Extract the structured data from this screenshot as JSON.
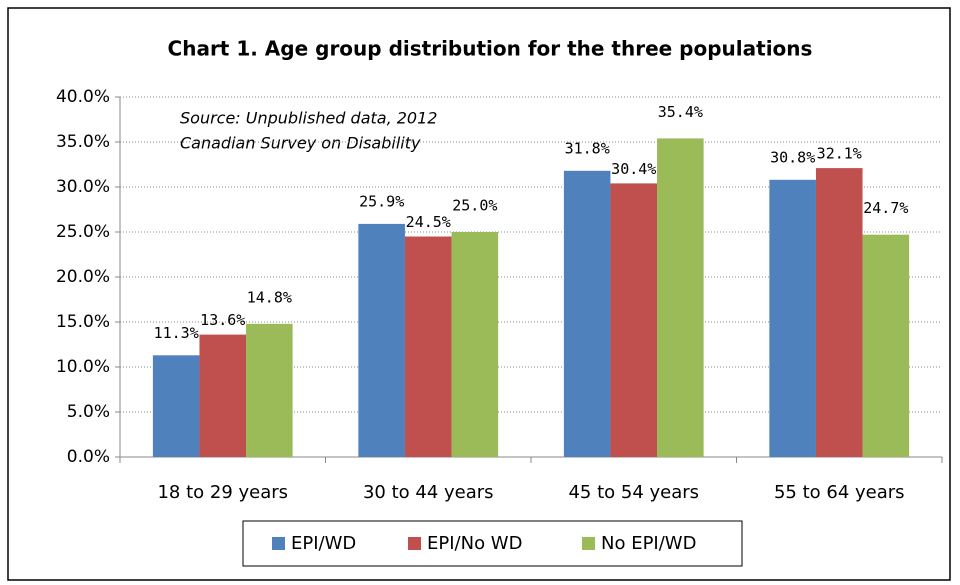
{
  "chart_data": {
    "type": "bar",
    "title": "Chart 1. Age group distribution for the three populations",
    "annotation": [
      "Source: Unpublished data, 2012",
      "Canadian Survey on Disability"
    ],
    "categories": [
      "18 to 29 years",
      "30 to 44 years",
      "45 to 54 years",
      "55 to 64 years"
    ],
    "series": [
      {
        "name": "EPI/WD",
        "color": "#4f81bd",
        "values": [
          11.3,
          25.9,
          31.8,
          30.8
        ],
        "value_labels": [
          "11.3%",
          "25.9%",
          "31.8%",
          "30.8%"
        ]
      },
      {
        "name": "EPI/No WD",
        "color": "#c0504d",
        "values": [
          13.6,
          24.5,
          30.4,
          32.1
        ],
        "value_labels": [
          "13.6%",
          "24.5%",
          "30.4%",
          "32.1%"
        ]
      },
      {
        "name": "No EPI/WD",
        "color": "#9bbb59",
        "values": [
          14.8,
          25.0,
          35.4,
          24.7
        ],
        "value_labels": [
          "14.8%",
          "25.0%",
          "35.4%",
          "24.7%"
        ]
      }
    ],
    "ylim": [
      0,
      40
    ],
    "yticks": [
      {
        "value": 0,
        "label": "0.0%"
      },
      {
        "value": 5,
        "label": "5.0%"
      },
      {
        "value": 10,
        "label": "10.0%"
      },
      {
        "value": 15,
        "label": "15.0%"
      },
      {
        "value": 20,
        "label": "20.0%"
      },
      {
        "value": 25,
        "label": "25.0%"
      },
      {
        "value": 30,
        "label": "30.0%"
      },
      {
        "value": 35,
        "label": "35.0%"
      },
      {
        "value": 40,
        "label": "40.0%"
      }
    ],
    "grid": true,
    "legend": "bottom"
  }
}
